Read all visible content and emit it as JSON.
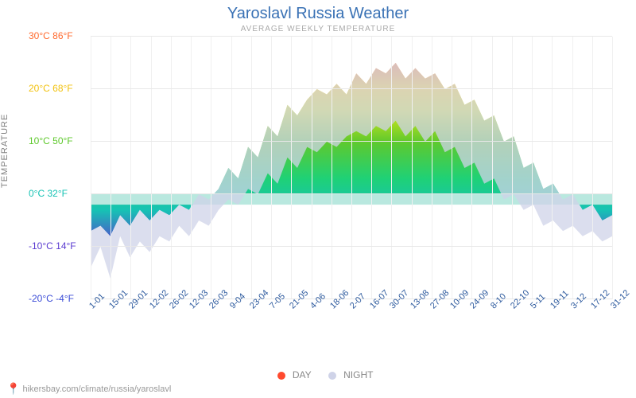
{
  "title": "Yaroslavl Russia Weather",
  "subtitle": "AVERAGE WEEKLY TEMPERATURE",
  "y_axis_label": "TEMPERATURE",
  "footer_url": "hikersbay.com/climate/russia/yaroslavl",
  "legend": {
    "day_label": "DAY",
    "day_color": "#ff4a2e",
    "night_label": "NIGHT",
    "night_color": "#cfd3e8"
  },
  "chart": {
    "type": "area",
    "background_color": "#ffffff",
    "grid_color": "#e8e8e8",
    "ylim": [
      -20,
      30
    ],
    "y_ticks": [
      {
        "c": -20,
        "f": -4,
        "label": "-20°C -4°F",
        "color": "#3a4bd6"
      },
      {
        "c": -10,
        "f": 14,
        "label": "-10°C 14°F",
        "color": "#5a3ad0"
      },
      {
        "c": 0,
        "f": 32,
        "label": "0°C 32°F",
        "color": "#16c3b4"
      },
      {
        "c": 10,
        "f": 50,
        "label": "10°C 50°F",
        "color": "#5fc92d"
      },
      {
        "c": 20,
        "f": 68,
        "label": "20°C 68°F",
        "color": "#f2c20f"
      },
      {
        "c": 30,
        "f": 86,
        "label": "30°C 86°F",
        "color": "#ff6a2e"
      }
    ],
    "x_labels": [
      "1-01",
      "15-01",
      "29-01",
      "12-02",
      "26-02",
      "12-03",
      "26-03",
      "9-04",
      "23-04",
      "7-05",
      "21-05",
      "4-06",
      "18-06",
      "2-07",
      "16-07",
      "30-07",
      "13-08",
      "27-08",
      "10-09",
      "24-09",
      "8-10",
      "22-10",
      "5-11",
      "19-11",
      "3-12",
      "17-12",
      "31-12"
    ],
    "x_label_color": "#2d5a9e",
    "x_label_fontsize": 11,
    "day_values": [
      -7,
      -6,
      -8,
      -4,
      -6,
      -3,
      -5,
      -3,
      -4,
      -2,
      -3,
      0,
      -1,
      1,
      5,
      3,
      9,
      7,
      13,
      11,
      17,
      15,
      18,
      20,
      19,
      21,
      19,
      23,
      21,
      24,
      23,
      25,
      22,
      24,
      22,
      23,
      20,
      21,
      17,
      18,
      14,
      15,
      10,
      11,
      5,
      6,
      1,
      2,
      -1,
      0,
      -3,
      -2,
      -5,
      -4
    ],
    "night_values": [
      -14,
      -10,
      -16,
      -8,
      -12,
      -9,
      -11,
      -8,
      -9,
      -6,
      -8,
      -5,
      -6,
      -3,
      -1,
      -2,
      1,
      0,
      4,
      2,
      7,
      5,
      9,
      8,
      10,
      9,
      11,
      12,
      11,
      13,
      12,
      14,
      11,
      13,
      10,
      12,
      8,
      9,
      5,
      6,
      2,
      3,
      -1,
      0,
      -3,
      -2,
      -6,
      -5,
      -7,
      -6,
      -8,
      -7,
      -9,
      -8
    ],
    "night_fill": "#cfd3e8",
    "zero_band_fill": "#b9e8df",
    "rainbow_stops": [
      {
        "t": -20,
        "c": "#3a2fd0"
      },
      {
        "t": -10,
        "c": "#5a3ad0"
      },
      {
        "t": -3,
        "c": "#16c3b4"
      },
      {
        "t": 3,
        "c": "#1fd176"
      },
      {
        "t": 10,
        "c": "#5fc92d"
      },
      {
        "t": 16,
        "c": "#d8e81b"
      },
      {
        "t": 20,
        "c": "#ffd60f"
      },
      {
        "t": 24,
        "c": "#ff8a2e"
      },
      {
        "t": 30,
        "c": "#ff3a2e"
      }
    ]
  }
}
